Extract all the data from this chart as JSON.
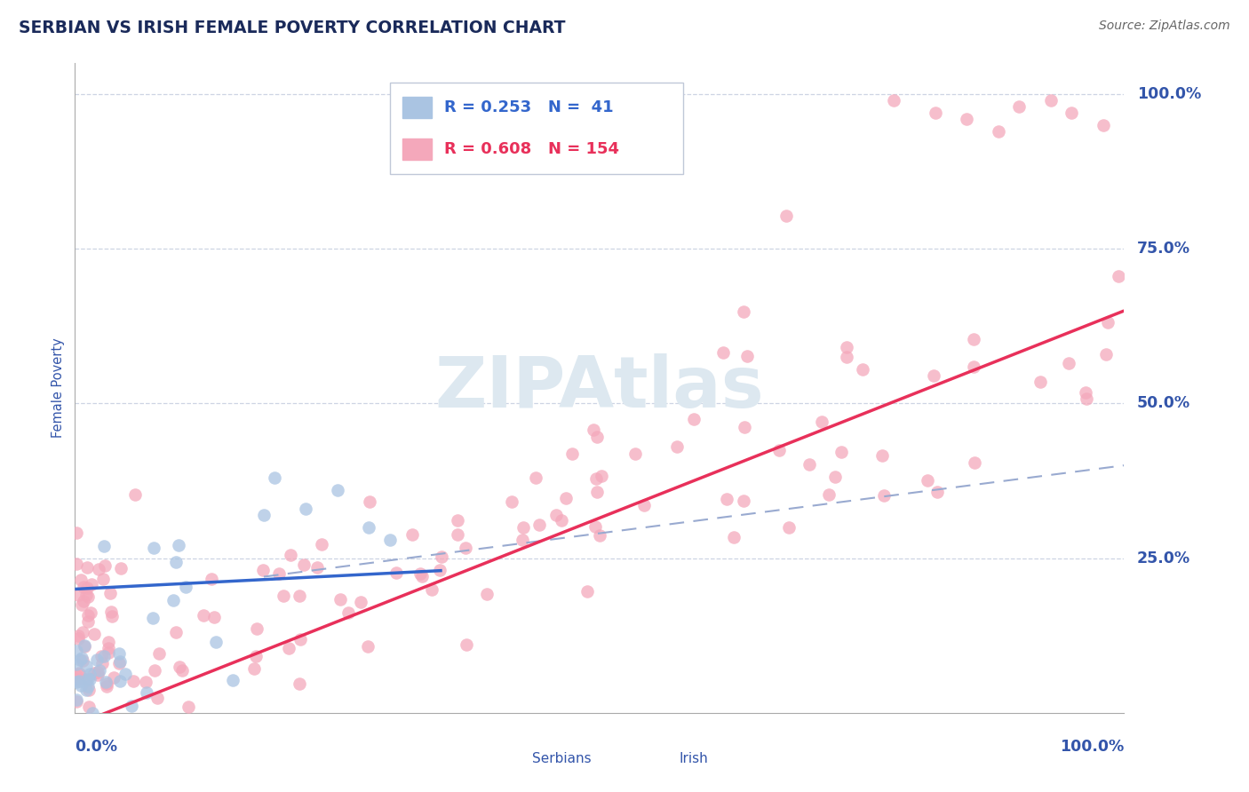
{
  "title": "SERBIAN VS IRISH FEMALE POVERTY CORRELATION CHART",
  "source": "Source: ZipAtlas.com",
  "ylabel": "Female Poverty",
  "legend_serbian_r": "R = 0.253",
  "legend_serbian_n": "N =  41",
  "legend_irish_r": "R = 0.608",
  "legend_irish_n": "N = 154",
  "serbian_color": "#aac4e2",
  "irish_color": "#f4a8bb",
  "serbian_line_color": "#3366cc",
  "irish_line_color": "#e8305a",
  "dashed_line_color": "#99aad0",
  "title_color": "#1a2a5a",
  "axis_label_color": "#3355aa",
  "tick_label_color": "#3355aa",
  "watermark_color": "#dde8f0",
  "background_color": "#ffffff",
  "grid_color": "#c8d0e0",
  "legend_border_color": "#c0c8d8",
  "source_color": "#666666"
}
